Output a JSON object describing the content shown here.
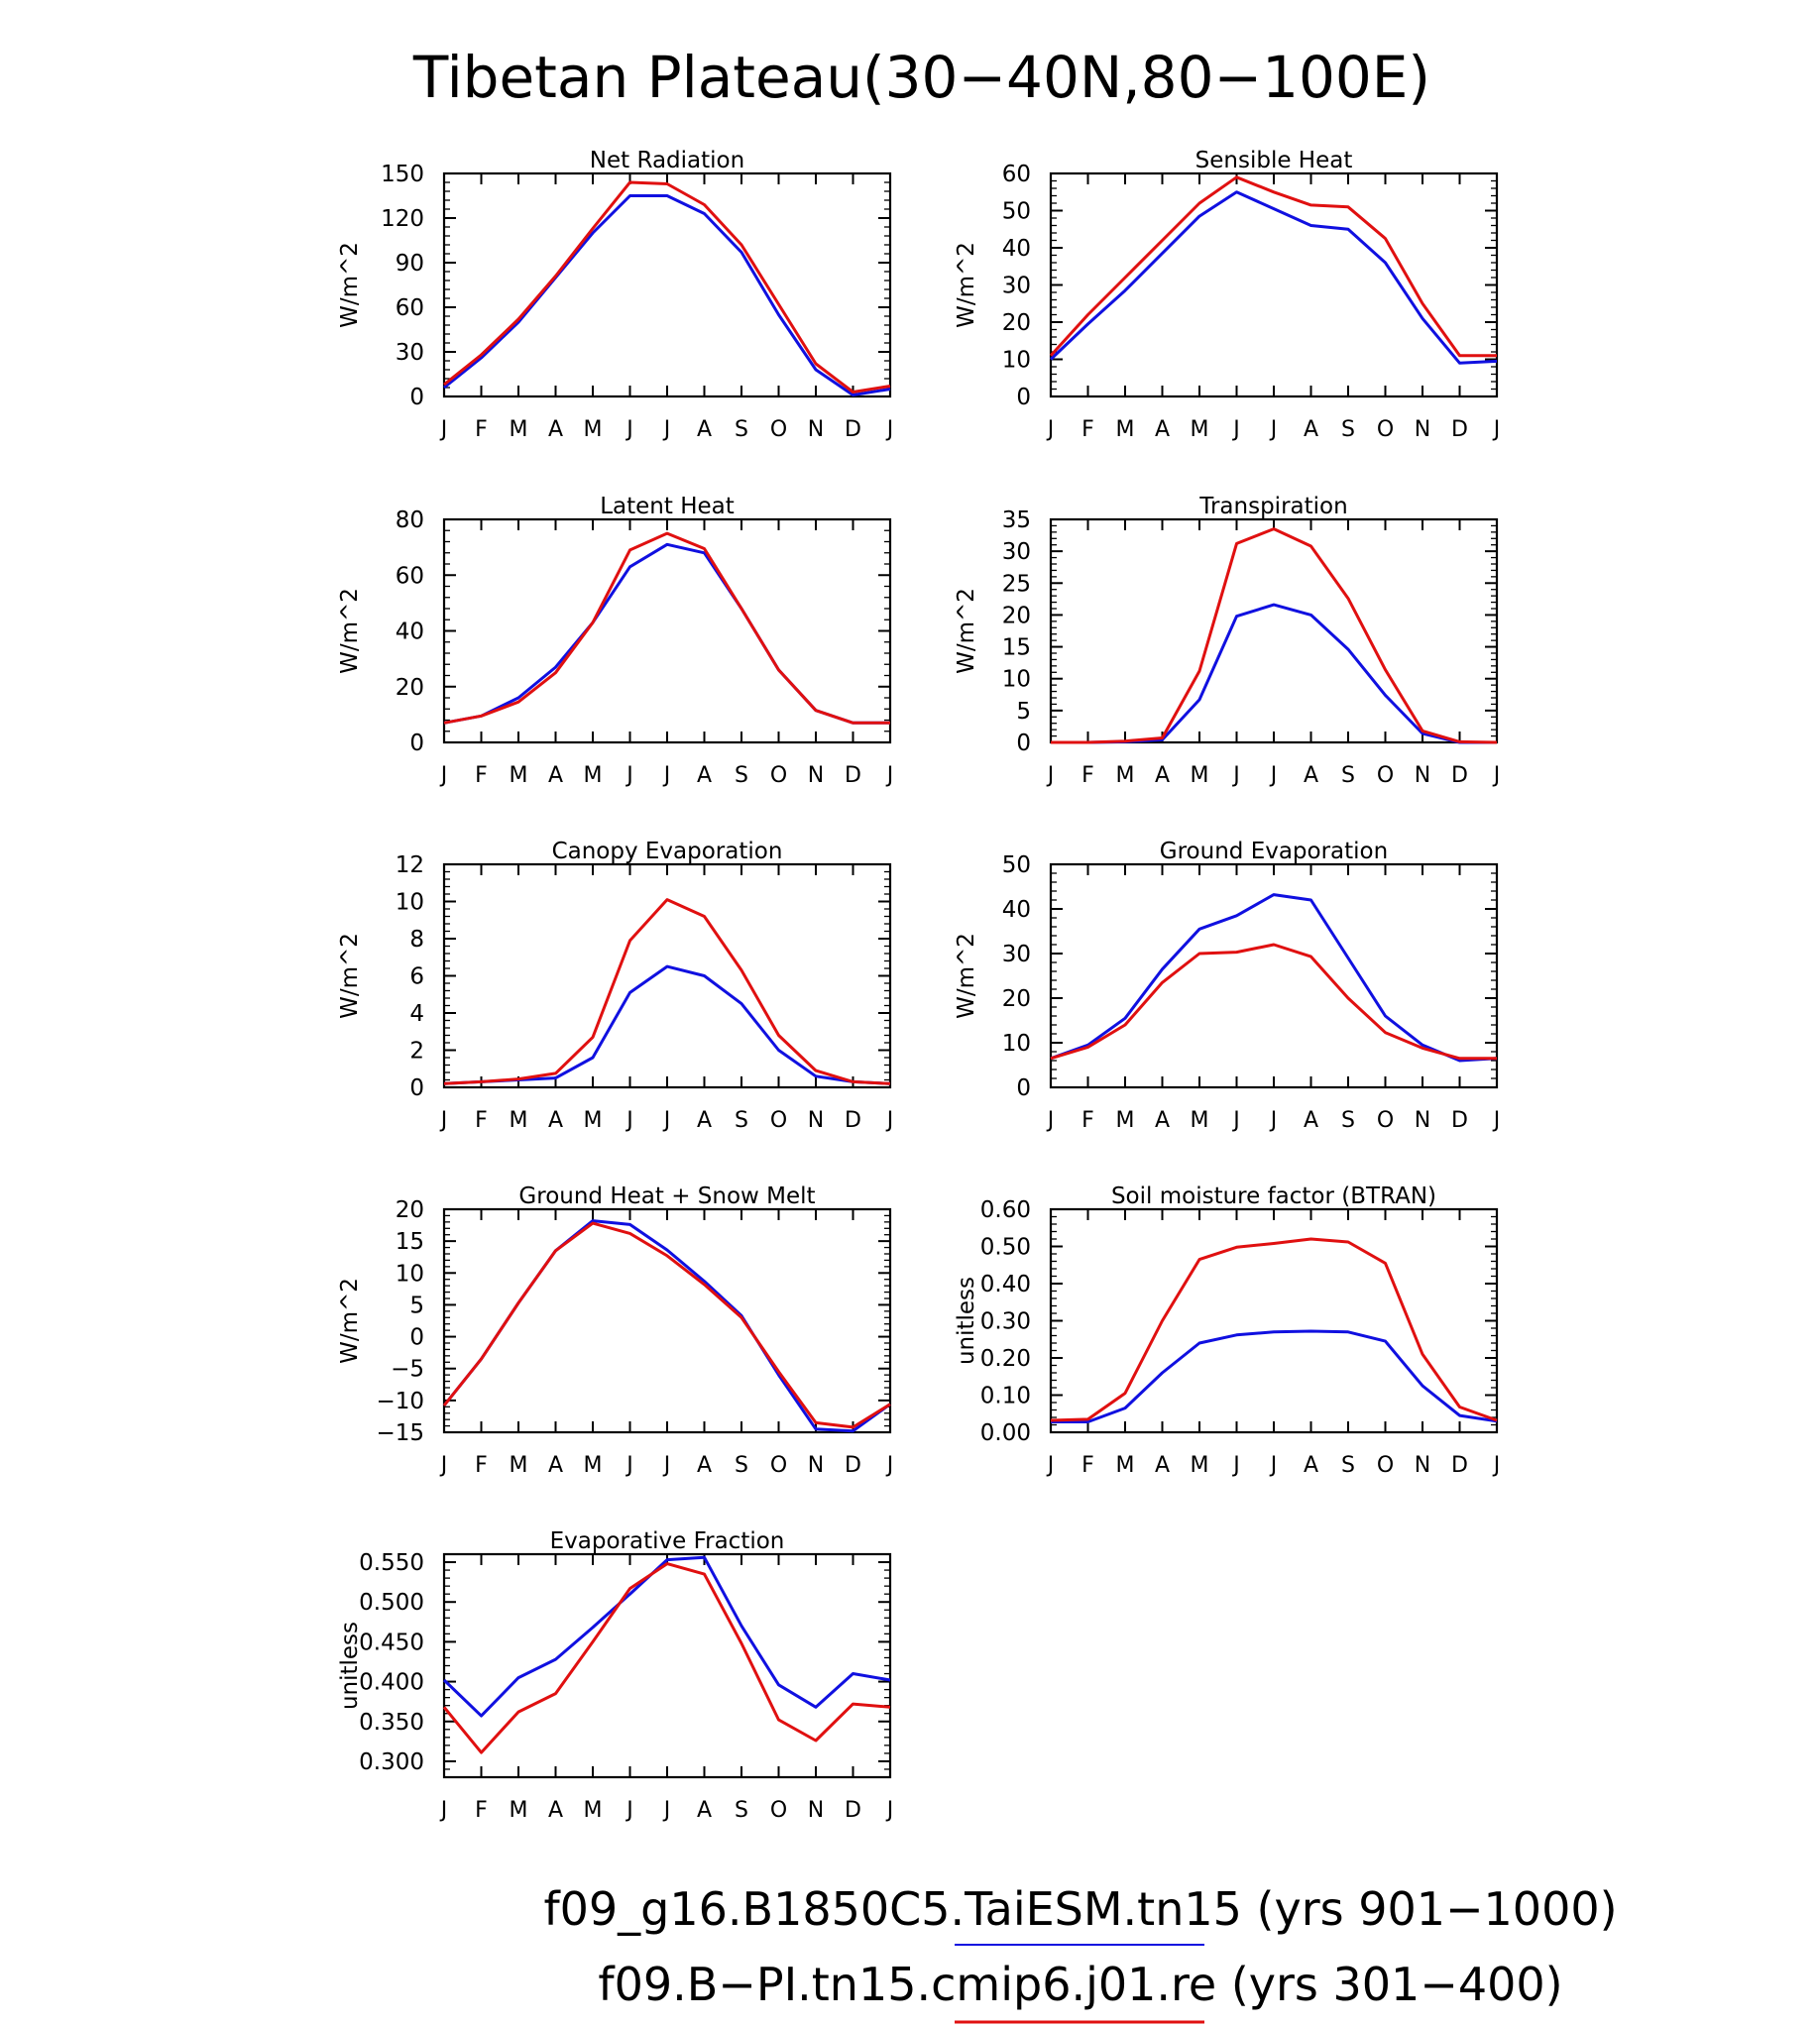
{
  "title": "Tibetan Plateau(30−40N,80−100E)",
  "month_labels": [
    "J",
    "F",
    "M",
    "A",
    "M",
    "J",
    "J",
    "A",
    "S",
    "O",
    "N",
    "D",
    "J"
  ],
  "colors": {
    "series_a": "#1010e0",
    "series_b": "#e01010",
    "axis": "#000000"
  },
  "legend": [
    {
      "label": "f09_g16.B1850C5.TaiESM.tn15 (yrs 901−1000)",
      "color": "#1010e0"
    },
    {
      "label": "f09.B−PI.tn15.cmip6.j01.re (yrs 301−400)",
      "color": "#e01010"
    }
  ],
  "chart_data": [
    {
      "type": "line",
      "title": "Net Radiation",
      "ylabel": "W/m^2",
      "ylim": [
        0,
        150
      ],
      "yticks": [
        "0",
        "30",
        "60",
        "90",
        "120",
        "150"
      ],
      "ytick_values": [
        0,
        30,
        60,
        90,
        120,
        150
      ],
      "x": [
        "J",
        "F",
        "M",
        "A",
        "M",
        "J",
        "J",
        "A",
        "S",
        "O",
        "N",
        "D",
        "J"
      ],
      "series": [
        {
          "color": "#1010e0",
          "values": [
            6,
            26,
            50,
            80,
            110,
            135,
            135,
            123,
            97,
            55,
            18,
            1,
            5
          ]
        },
        {
          "color": "#e01010",
          "values": [
            8,
            28,
            52,
            81,
            113,
            144,
            143,
            129,
            102,
            62,
            22,
            3,
            7
          ]
        }
      ]
    },
    {
      "type": "line",
      "title": "Sensible Heat",
      "ylabel": "W/m^2",
      "ylim": [
        0,
        60
      ],
      "yticks": [
        "0",
        "10",
        "20",
        "30",
        "40",
        "50",
        "60"
      ],
      "ytick_values": [
        0,
        10,
        20,
        30,
        40,
        50,
        60
      ],
      "x": [
        "J",
        "F",
        "M",
        "A",
        "M",
        "J",
        "J",
        "A",
        "S",
        "O",
        "N",
        "D",
        "J"
      ],
      "series": [
        {
          "color": "#1010e0",
          "values": [
            10,
            19.5,
            28.5,
            38.5,
            48.5,
            55,
            50.5,
            46,
            45,
            36,
            21,
            9,
            9.5
          ]
        },
        {
          "color": "#e01010",
          "values": [
            11,
            22,
            32,
            42,
            52,
            59,
            55,
            51.5,
            51,
            42.5,
            25,
            11,
            11
          ]
        }
      ]
    },
    {
      "type": "line",
      "title": "Latent Heat",
      "ylabel": "W/m^2",
      "ylim": [
        0,
        80
      ],
      "yticks": [
        "0",
        "20",
        "40",
        "60",
        "80"
      ],
      "ytick_values": [
        0,
        20,
        40,
        60,
        80
      ],
      "x": [
        "J",
        "F",
        "M",
        "A",
        "M",
        "J",
        "J",
        "A",
        "S",
        "O",
        "N",
        "D",
        "J"
      ],
      "series": [
        {
          "color": "#1010e0",
          "values": [
            7,
            9.5,
            16,
            27,
            43,
            63,
            71,
            68,
            48,
            26,
            11.5,
            7,
            7
          ]
        },
        {
          "color": "#e01010",
          "values": [
            7,
            9.5,
            14.5,
            25,
            43,
            69,
            75,
            69.5,
            48,
            26,
            11.5,
            7,
            7
          ]
        }
      ]
    },
    {
      "type": "line",
      "title": "Transpiration",
      "ylabel": "W/m^2",
      "ylim": [
        0,
        35
      ],
      "yticks": [
        "0",
        "5",
        "10",
        "15",
        "20",
        "25",
        "30",
        "35"
      ],
      "ytick_values": [
        0,
        5,
        10,
        15,
        20,
        25,
        30,
        35
      ],
      "x": [
        "J",
        "F",
        "M",
        "A",
        "M",
        "J",
        "J",
        "A",
        "S",
        "O",
        "N",
        "D",
        "J"
      ],
      "series": [
        {
          "color": "#1010e0",
          "values": [
            0,
            0,
            0.1,
            0.4,
            6.7,
            19.8,
            21.6,
            20,
            14.6,
            7.4,
            1.4,
            0,
            0
          ]
        },
        {
          "color": "#e01010",
          "values": [
            0,
            0,
            0.2,
            0.7,
            11.2,
            31.2,
            33.5,
            30.8,
            22.6,
            11.4,
            1.8,
            0.1,
            0
          ]
        }
      ]
    },
    {
      "type": "line",
      "title": "Canopy Evaporation",
      "ylabel": "W/m^2",
      "ylim": [
        0,
        12
      ],
      "yticks": [
        "0",
        "2",
        "4",
        "6",
        "8",
        "10",
        "12"
      ],
      "ytick_values": [
        0,
        2,
        4,
        6,
        8,
        10,
        12
      ],
      "x": [
        "J",
        "F",
        "M",
        "A",
        "M",
        "J",
        "J",
        "A",
        "S",
        "O",
        "N",
        "D",
        "J"
      ],
      "series": [
        {
          "color": "#1010e0",
          "values": [
            0.2,
            0.3,
            0.4,
            0.5,
            1.6,
            5.1,
            6.5,
            6,
            4.5,
            2,
            0.6,
            0.3,
            0.2
          ]
        },
        {
          "color": "#e01010",
          "values": [
            0.2,
            0.3,
            0.45,
            0.75,
            2.7,
            7.9,
            10.1,
            9.2,
            6.3,
            2.8,
            0.9,
            0.3,
            0.2
          ]
        }
      ]
    },
    {
      "type": "line",
      "title": "Ground Evaporation",
      "ylabel": "W/m^2",
      "ylim": [
        0,
        50
      ],
      "yticks": [
        "0",
        "10",
        "20",
        "30",
        "40",
        "50"
      ],
      "ytick_values": [
        0,
        10,
        20,
        30,
        40,
        50
      ],
      "x": [
        "J",
        "F",
        "M",
        "A",
        "M",
        "J",
        "J",
        "A",
        "S",
        "O",
        "N",
        "D",
        "J"
      ],
      "series": [
        {
          "color": "#1010e0",
          "values": [
            6.5,
            9.5,
            15.5,
            26.5,
            35.5,
            38.5,
            43.2,
            42,
            29,
            16,
            9.5,
            6,
            6.5
          ]
        },
        {
          "color": "#e01010",
          "values": [
            6.5,
            9,
            14,
            23.5,
            30,
            30.3,
            32,
            29.3,
            20,
            12.3,
            8.8,
            6.5,
            6.5
          ]
        }
      ]
    },
    {
      "type": "line",
      "title": "Ground Heat + Snow Melt",
      "ylabel": "W/m^2",
      "ylim": [
        -15,
        20
      ],
      "yticks": [
        "−15",
        "−10",
        "−5",
        "0",
        "5",
        "10",
        "15",
        "20"
      ],
      "ytick_values": [
        -15,
        -10,
        -5,
        0,
        5,
        10,
        15,
        20
      ],
      "x": [
        "J",
        "F",
        "M",
        "A",
        "M",
        "J",
        "J",
        "A",
        "S",
        "O",
        "N",
        "D",
        "J"
      ],
      "series": [
        {
          "color": "#1010e0",
          "values": [
            -10.8,
            -3.5,
            5.3,
            13.5,
            18.2,
            17.6,
            13.6,
            8.7,
            3.3,
            -6,
            -14.5,
            -14.8,
            -10.6
          ]
        },
        {
          "color": "#e01010",
          "values": [
            -10.8,
            -3.5,
            5.3,
            13.5,
            17.8,
            16.2,
            12.7,
            8.2,
            3,
            -5.5,
            -13.5,
            -14.2,
            -10.6
          ]
        }
      ]
    },
    {
      "type": "line",
      "title": "Soil moisture factor (BTRAN)",
      "ylabel": "unitless",
      "ylim": [
        0,
        0.6
      ],
      "yticks": [
        "0.00",
        "0.10",
        "0.20",
        "0.30",
        "0.40",
        "0.50",
        "0.60"
      ],
      "ytick_values": [
        0,
        0.1,
        0.2,
        0.3,
        0.4,
        0.5,
        0.6
      ],
      "x": [
        "J",
        "F",
        "M",
        "A",
        "M",
        "J",
        "J",
        "A",
        "S",
        "O",
        "N",
        "D",
        "J"
      ],
      "series": [
        {
          "color": "#1010e0",
          "values": [
            0.028,
            0.028,
            0.065,
            0.16,
            0.24,
            0.262,
            0.27,
            0.272,
            0.27,
            0.245,
            0.125,
            0.045,
            0.03
          ]
        },
        {
          "color": "#e01010",
          "values": [
            0.032,
            0.035,
            0.105,
            0.3,
            0.465,
            0.498,
            0.508,
            0.52,
            0.512,
            0.455,
            0.21,
            0.068,
            0.032
          ]
        }
      ]
    },
    {
      "type": "line",
      "title": "Evaporative Fraction",
      "ylabel": "unitless",
      "ylim": [
        0.28,
        0.56
      ],
      "yticks": [
        "0.300",
        "0.350",
        "0.400",
        "0.450",
        "0.500",
        "0.550"
      ],
      "ytick_values": [
        0.3,
        0.35,
        0.4,
        0.45,
        0.5,
        0.55
      ],
      "x": [
        "J",
        "F",
        "M",
        "A",
        "M",
        "J",
        "J",
        "A",
        "S",
        "O",
        "N",
        "D",
        "J"
      ],
      "series": [
        {
          "color": "#1010e0",
          "values": [
            0.402,
            0.357,
            0.405,
            0.428,
            0.468,
            0.51,
            0.553,
            0.556,
            0.47,
            0.396,
            0.368,
            0.41,
            0.402
          ]
        },
        {
          "color": "#e01010",
          "values": [
            0.368,
            0.311,
            0.362,
            0.385,
            0.45,
            0.517,
            0.548,
            0.535,
            0.448,
            0.352,
            0.326,
            0.372,
            0.368
          ]
        }
      ]
    }
  ]
}
